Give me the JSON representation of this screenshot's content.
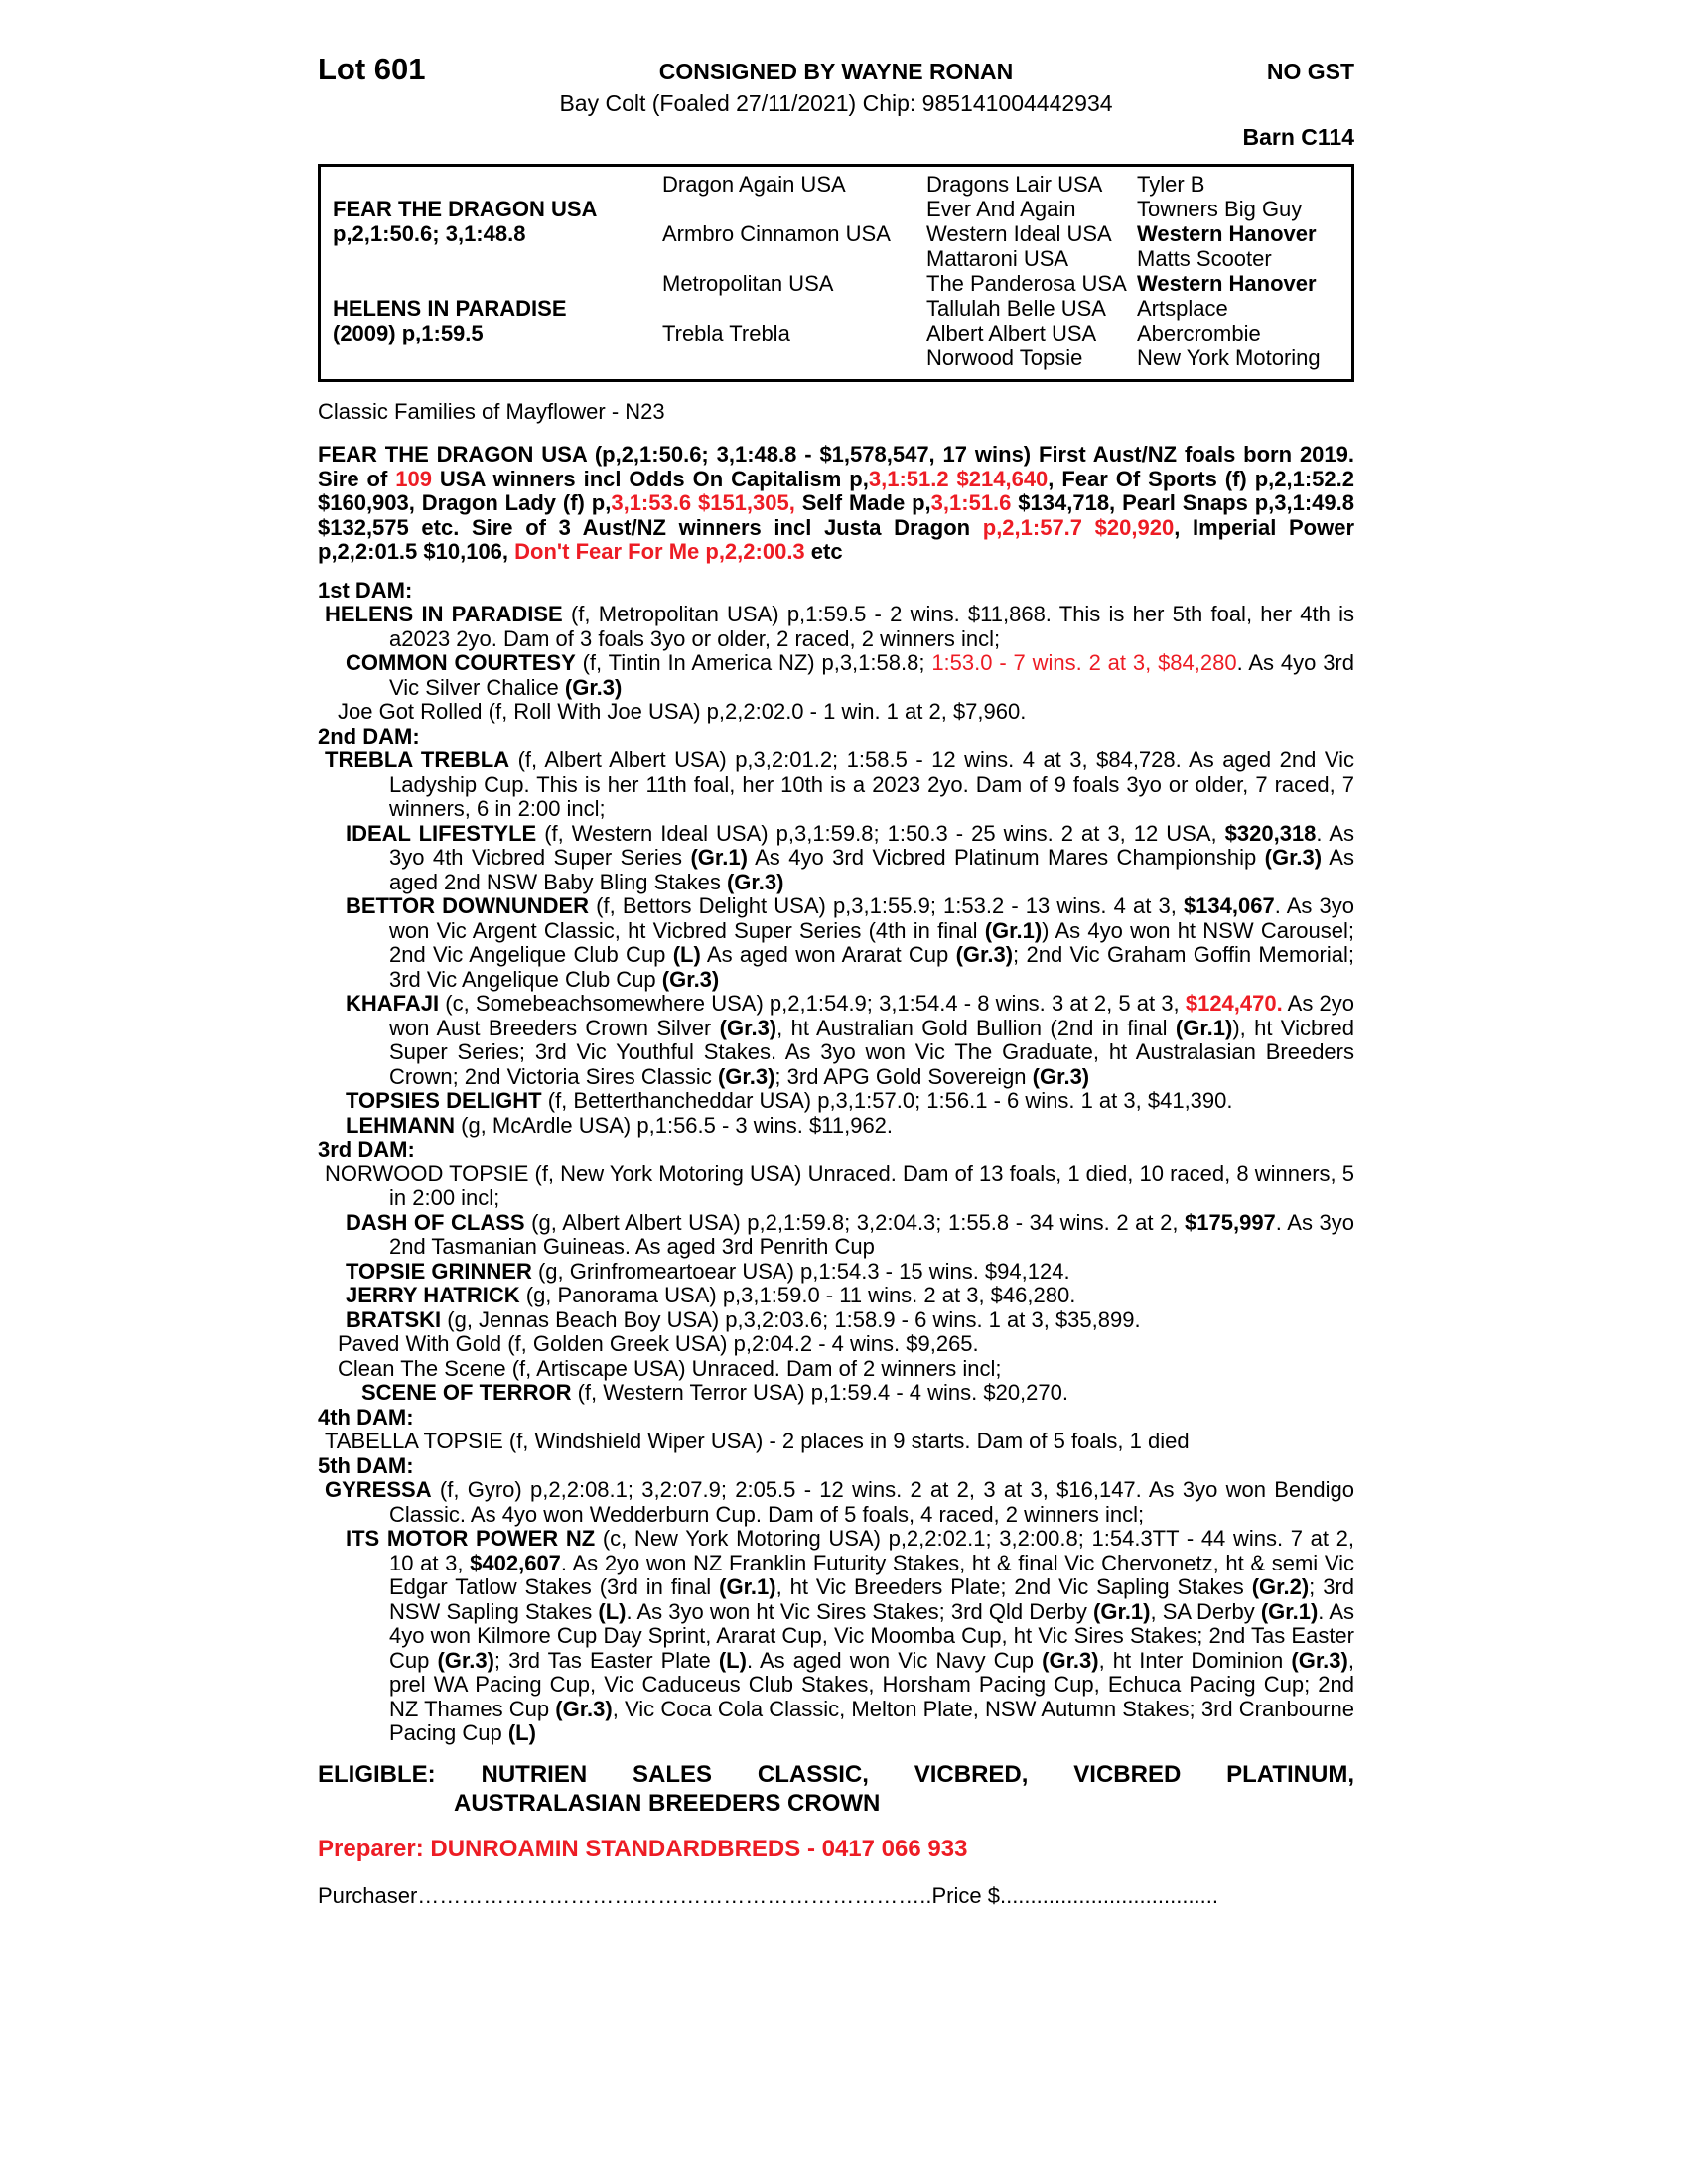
{
  "colors": {
    "red": "#ed1c24"
  },
  "header": {
    "lot": "Lot 601",
    "consigned": "CONSIGNED BY WAYNE RONAN",
    "no_gst": "NO GST",
    "description": "Bay Colt (Foaled 27/11/2021) Chip: 985141004442934",
    "barn": "Barn C114"
  },
  "pedigree": {
    "grid": [
      {
        "c1": "",
        "c2": "Dragon Again USA",
        "c3": "Dragons Lair USA",
        "c4": "Tyler B"
      },
      {
        "c1": "FEAR THE DRAGON USA",
        "c2": "",
        "c3": "Ever And Again",
        "c4": "Towners Big Guy"
      },
      {
        "c1": "p,2,1:50.6; 3,1:48.8",
        "c2": "Armbro Cinnamon USA",
        "c3": "Western Ideal USA",
        "c4": "Western Hanover"
      },
      {
        "c1": "",
        "c2": "",
        "c3": "Mattaroni USA",
        "c4": "Matts Scooter"
      },
      {
        "c1": "",
        "c2": "Metropolitan USA",
        "c3": "The Panderosa USA",
        "c4": "Western Hanover"
      },
      {
        "c1": "HELENS IN PARADISE",
        "c2": "",
        "c3": "Tallulah Belle USA",
        "c4": "Artsplace"
      },
      {
        "c1": "(2009) p,1:59.5",
        "c2": "Trebla Trebla",
        "c3": "Albert Albert USA",
        "c4": "Abercrombie"
      },
      {
        "c1": "",
        "c2": "",
        "c3": "Norwood Topsie",
        "c4": "New York Motoring"
      }
    ]
  },
  "family_line": "Classic Families of Mayflower - N23",
  "sire_summary": [
    {
      "t": "FEAR THE DRAGON USA (p,2,1:50.6; 3,1:48.8 - $1,578,547, 17 wins) First Aust/NZ foals born 2019. Sire of ",
      "c": "b"
    },
    {
      "t": "109",
      "c": "rb"
    },
    {
      "t": " USA winners incl Odds On Capitalism p,",
      "c": "b"
    },
    {
      "t": "3,1:51.2 $214,640",
      "c": "rb"
    },
    {
      "t": ", Fear Of Sports (f) p,2,1:52.2 $160,903, Dragon Lady (f) p,",
      "c": "b"
    },
    {
      "t": "3,1:53.6 $151,305,",
      "c": "rb"
    },
    {
      "t": " Self Made p,",
      "c": "b"
    },
    {
      "t": "3,1:51.6",
      "c": "rb"
    },
    {
      "t": " $134,718, Pearl Snaps p,3,1:49.8 $132,575 etc. Sire of 3 Aust/NZ winners incl Justa Dragon ",
      "c": "b"
    },
    {
      "t": "p,2,1:57.7 $20,920",
      "c": "rb"
    },
    {
      "t": ", Imperial Power p,2,2:01.5 $10,106, ",
      "c": "b"
    },
    {
      "t": "Don't Fear For Me p,2,2:00.3",
      "c": "rb"
    },
    {
      "t": " etc",
      "c": "b"
    }
  ],
  "dam1": {
    "label": "1st DAM:",
    "e1": [
      {
        "t": "HELENS IN PARADISE",
        "c": "b"
      },
      {
        "t": " (f, Metropolitan USA) p,1:59.5 - 2 wins. $11,868. This is her 5th foal, her 4th is a2023 2yo. Dam of 3 foals 3yo or older, 2 raced, 2 winners incl;",
        "c": ""
      }
    ],
    "e2": [
      {
        "t": "COMMON COURTESY",
        "c": "b"
      },
      {
        "t": " (f, Tintin In America NZ) p,3,1:58.8; ",
        "c": ""
      },
      {
        "t": "1:53.0 - 7 wins. 2 at 3, $84,280",
        "c": "r"
      },
      {
        "t": ". As 4yo 3rd Vic Silver Chalice ",
        "c": ""
      },
      {
        "t": "(Gr.3)",
        "c": "b"
      }
    ],
    "e3": [
      {
        "t": "Joe Got Rolled (f, Roll With Joe USA) p,2,2:02.0 - 1 win. 1 at 2, $7,960.",
        "c": ""
      }
    ]
  },
  "dam2": {
    "label": "2nd DAM:",
    "e1": [
      {
        "t": "TREBLA TREBLA",
        "c": "b"
      },
      {
        "t": " (f, Albert Albert USA) p,3,2:01.2; 1:58.5 - 12 wins. 4 at 3, $84,728. As aged 2nd Vic Ladyship Cup. This is her 11th foal, her 10th is a 2023 2yo. Dam of 9 foals 3yo or older, 7 raced, 7 winners, 6 in 2:00 incl;",
        "c": ""
      }
    ],
    "e2": [
      {
        "t": "IDEAL LIFESTYLE",
        "c": "b"
      },
      {
        "t": " (f, Western Ideal USA) p,3,1:59.8; 1:50.3 - 25 wins. 2 at 3, 12 USA, ",
        "c": ""
      },
      {
        "t": "$320,318",
        "c": "b"
      },
      {
        "t": ". As 3yo 4th Vicbred Super Series ",
        "c": ""
      },
      {
        "t": "(Gr.1)",
        "c": "b"
      },
      {
        "t": " As 4yo 3rd Vicbred Platinum Mares Championship ",
        "c": ""
      },
      {
        "t": "(Gr.3)",
        "c": "b"
      },
      {
        "t": " As aged 2nd NSW Baby Bling Stakes ",
        "c": ""
      },
      {
        "t": "(Gr.3)",
        "c": "b"
      }
    ],
    "e3": [
      {
        "t": "BETTOR DOWNUNDER",
        "c": "b"
      },
      {
        "t": " (f, Bettors Delight USA) p,3,1:55.9; 1:53.2 - 13 wins. 4 at 3, ",
        "c": ""
      },
      {
        "t": "$134,067",
        "c": "b"
      },
      {
        "t": ". As 3yo won Vic Argent Classic, ht Vicbred Super Series (4th in final ",
        "c": ""
      },
      {
        "t": "(Gr.1)",
        "c": "b"
      },
      {
        "t": ") As 4yo won ht NSW Carousel; 2nd Vic Angelique Club Cup ",
        "c": ""
      },
      {
        "t": "(L)",
        "c": "b"
      },
      {
        "t": " As aged won Ararat Cup ",
        "c": ""
      },
      {
        "t": "(Gr.3)",
        "c": "b"
      },
      {
        "t": "; 2nd Vic Graham Goffin Memorial; 3rd Vic Angelique Club Cup ",
        "c": ""
      },
      {
        "t": "(Gr.3)",
        "c": "b"
      }
    ],
    "e4": [
      {
        "t": "KHAFAJI",
        "c": "b"
      },
      {
        "t": " (c, Somebeachsomewhere USA) p,2,1:54.9; 3,1:54.4 - 8 wins. 3 at 2, 5 at 3, ",
        "c": ""
      },
      {
        "t": "$124,470.",
        "c": "rb"
      },
      {
        "t": " As 2yo won Aust Breeders Crown Silver ",
        "c": ""
      },
      {
        "t": "(Gr.3)",
        "c": "b"
      },
      {
        "t": ", ht Australian Gold Bullion (2nd in final ",
        "c": ""
      },
      {
        "t": "(Gr.1)",
        "c": "b"
      },
      {
        "t": "), ht Vicbred Super Series; 3rd Vic Youthful Stakes. As 3yo won Vic The Graduate, ht Australasian Breeders Crown; 2nd Victoria Sires Classic ",
        "c": ""
      },
      {
        "t": "(Gr.3)",
        "c": "b"
      },
      {
        "t": "; 3rd APG Gold Sovereign ",
        "c": ""
      },
      {
        "t": "(Gr.3)",
        "c": "b"
      }
    ],
    "e5": [
      {
        "t": "TOPSIES DELIGHT",
        "c": "b"
      },
      {
        "t": " (f, Betterthancheddar USA) p,3,1:57.0; 1:56.1 - 6 wins. 1 at 3, $41,390.",
        "c": ""
      }
    ],
    "e6": [
      {
        "t": "LEHMANN",
        "c": "b"
      },
      {
        "t": " (g, McArdle USA) p,1:56.5 - 3 wins. $11,962.",
        "c": ""
      }
    ]
  },
  "dam3": {
    "label": "3rd DAM:",
    "e1": [
      {
        "t": "NORWOOD TOPSIE (f, New York Motoring USA) Unraced. Dam of 13 foals, 1 died, 10 raced, 8 winners, 5 in 2:00 incl;",
        "c": ""
      }
    ],
    "e2": [
      {
        "t": "DASH OF CLASS",
        "c": "b"
      },
      {
        "t": " (g, Albert Albert USA) p,2,1:59.8; 3,2:04.3; 1:55.8 - 34 wins. 2 at 2, ",
        "c": ""
      },
      {
        "t": "$175,997",
        "c": "b"
      },
      {
        "t": ". As 3yo 2nd Tasmanian Guineas. As aged 3rd Penrith Cup",
        "c": ""
      }
    ],
    "e3": [
      {
        "t": "TOPSIE GRINNER",
        "c": "b"
      },
      {
        "t": " (g, Grinfromeartoear USA) p,1:54.3 - 15 wins. $94,124.",
        "c": ""
      }
    ],
    "e4": [
      {
        "t": "JERRY HATRICK",
        "c": "b"
      },
      {
        "t": " (g, Panorama USA) p,3,1:59.0 - 11 wins. 2 at 3, $46,280.",
        "c": ""
      }
    ],
    "e5": [
      {
        "t": "BRATSKI",
        "c": "b"
      },
      {
        "t": " (g, Jennas Beach Boy USA) p,3,2:03.6; 1:58.9 - 6 wins. 1 at 3, $35,899.",
        "c": ""
      }
    ],
    "e6": [
      {
        "t": "Paved With Gold (f, Golden Greek USA) p,2:04.2 - 4 wins. $9,265.",
        "c": ""
      }
    ],
    "e7": [
      {
        "t": "Clean The Scene (f, Artiscape USA) Unraced. Dam of 2 winners incl;",
        "c": ""
      }
    ],
    "e8": [
      {
        "t": "SCENE OF TERROR",
        "c": "b"
      },
      {
        "t": " (f, Western Terror USA) p,1:59.4 - 4 wins. $20,270.",
        "c": ""
      }
    ]
  },
  "dam4": {
    "label": "4th DAM:",
    "e1": [
      {
        "t": "TABELLA TOPSIE (f, Windshield Wiper USA) - 2 places in 9 starts. Dam of 5 foals, 1 died",
        "c": ""
      }
    ]
  },
  "dam5": {
    "label": "5th DAM:",
    "e1": [
      {
        "t": "GYRESSA",
        "c": "b"
      },
      {
        "t": " (f, Gyro) p,2,2:08.1; 3,2:07.9; 2:05.5 - 12 wins. 2 at 2, 3 at 3, $16,147. As 3yo won Bendigo Classic. As 4yo won Wedderburn Cup. Dam of 5 foals, 4 raced, 2 winners incl;",
        "c": ""
      }
    ],
    "e2": [
      {
        "t": "ITS MOTOR POWER NZ",
        "c": "b"
      },
      {
        "t": " (c, New York Motoring USA) p,2,2:02.1; 3,2:00.8; 1:54.3TT - 44 wins. 7 at 2, 10 at 3, ",
        "c": ""
      },
      {
        "t": "$402,607",
        "c": "b"
      },
      {
        "t": ". As 2yo won NZ Franklin Futurity Stakes, ht & final Vic Chervonetz, ht & semi Vic Edgar Tatlow Stakes (3rd in final ",
        "c": ""
      },
      {
        "t": "(Gr.1)",
        "c": "b"
      },
      {
        "t": ", ht Vic Breeders Plate; 2nd Vic Sapling Stakes ",
        "c": ""
      },
      {
        "t": "(Gr.2)",
        "c": "b"
      },
      {
        "t": "; 3rd NSW Sapling Stakes ",
        "c": ""
      },
      {
        "t": "(L)",
        "c": "b"
      },
      {
        "t": ". As 3yo won ht Vic Sires Stakes; 3rd Qld Derby ",
        "c": ""
      },
      {
        "t": "(Gr.1)",
        "c": "b"
      },
      {
        "t": ", SA Derby ",
        "c": ""
      },
      {
        "t": "(Gr.1)",
        "c": "b"
      },
      {
        "t": ". As 4yo won Kilmore Cup Day Sprint, Ararat Cup, Vic Moomba Cup, ht Vic Sires Stakes; 2nd Tas Easter Cup ",
        "c": ""
      },
      {
        "t": "(Gr.3)",
        "c": "b"
      },
      {
        "t": "; 3rd Tas Easter Plate ",
        "c": ""
      },
      {
        "t": "(L)",
        "c": "b"
      },
      {
        "t": ". As aged won Vic Navy Cup ",
        "c": ""
      },
      {
        "t": "(Gr.3)",
        "c": "b"
      },
      {
        "t": ", ht Inter Dominion ",
        "c": ""
      },
      {
        "t": "(Gr.3)",
        "c": "b"
      },
      {
        "t": ", prel WA Pacing Cup, Vic Caduceus Club Stakes, Horsham Pacing Cup, Echuca Pacing Cup; 2nd NZ Thames Cup ",
        "c": ""
      },
      {
        "t": "(Gr.3)",
        "c": "b"
      },
      {
        "t": ", Vic Coca Cola Classic, Melton Plate, NSW Autumn Stakes; 3rd Cranbourne Pacing Cup ",
        "c": ""
      },
      {
        "t": "(L)",
        "c": "b"
      }
    ]
  },
  "eligible": {
    "line1": "ELIGIBLE: NUTRIEN SALES CLASSIC, VICBRED, VICBRED PLATINUM,",
    "line2": "AUSTRALASIAN BREEDERS CROWN"
  },
  "preparer_line": "Preparer: DUNROAMIN STANDARDBREDS - 0417 066 933",
  "purchase_line": "Purchaser……………………………………………………………..Price $...................................."
}
